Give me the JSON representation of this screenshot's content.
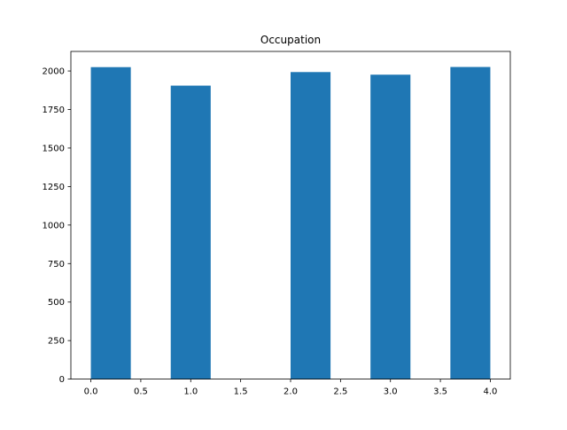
{
  "chart_data": {
    "type": "bar",
    "title": "Occupation",
    "xlabel": "",
    "ylabel": "",
    "bins": [
      {
        "start": 0.0,
        "end": 0.4,
        "count": 2025
      },
      {
        "start": 0.4,
        "end": 0.8,
        "count": 0
      },
      {
        "start": 0.8,
        "end": 1.2,
        "count": 1905
      },
      {
        "start": 1.2,
        "end": 1.6,
        "count": 0
      },
      {
        "start": 1.6,
        "end": 2.0,
        "count": 0
      },
      {
        "start": 2.0,
        "end": 2.4,
        "count": 1993
      },
      {
        "start": 2.4,
        "end": 2.8,
        "count": 0
      },
      {
        "start": 2.8,
        "end": 3.2,
        "count": 1976
      },
      {
        "start": 3.2,
        "end": 3.6,
        "count": 0
      },
      {
        "start": 3.6,
        "end": 4.0,
        "count": 2026
      }
    ],
    "xlim": [
      -0.2,
      4.2
    ],
    "ylim": [
      0,
      2127
    ],
    "x_ticks": [
      0.0,
      0.5,
      1.0,
      1.5,
      2.0,
      2.5,
      3.0,
      3.5,
      4.0
    ],
    "x_tick_labels": [
      "0.0",
      "0.5",
      "1.0",
      "1.5",
      "2.0",
      "2.5",
      "3.0",
      "3.5",
      "4.0"
    ],
    "y_ticks": [
      0,
      250,
      500,
      750,
      1000,
      1250,
      1500,
      1750,
      2000
    ],
    "y_tick_labels": [
      "0",
      "250",
      "500",
      "750",
      "1000",
      "1250",
      "1500",
      "1750",
      "2000"
    ],
    "bar_color": "#1f77b4",
    "grid": false
  }
}
